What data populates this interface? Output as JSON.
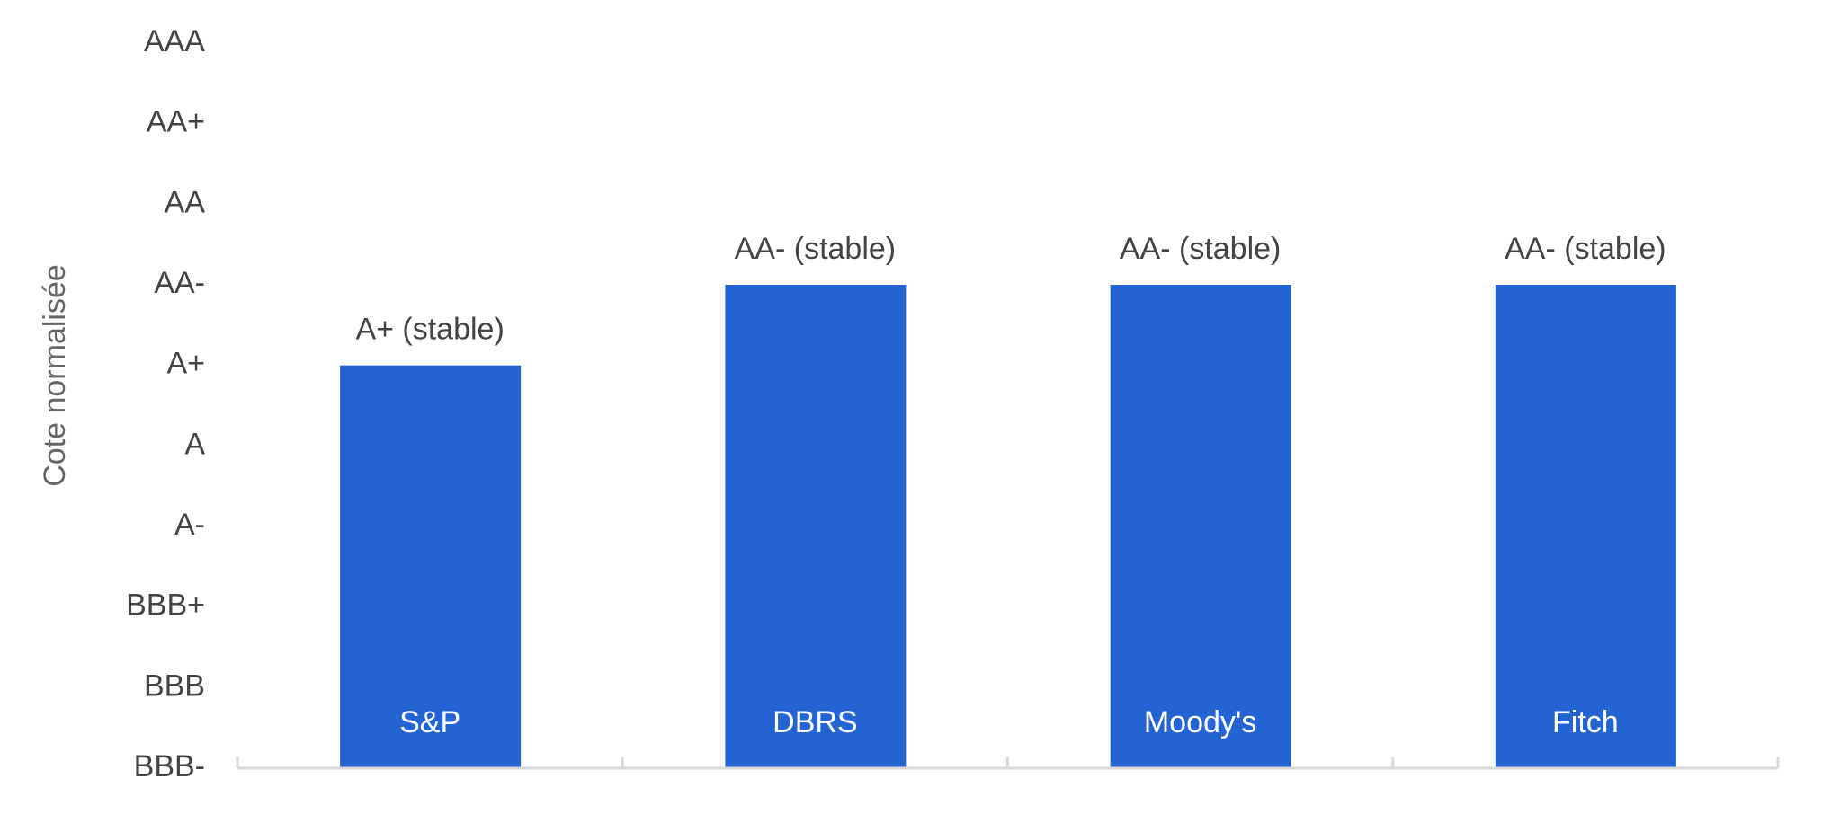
{
  "chart_data": {
    "type": "bar",
    "y_label": "Cote normalisée",
    "categories": [
      "S&P",
      "DBRS",
      "Moody's",
      "Fitch"
    ],
    "values": [
      6,
      7,
      7,
      7
    ],
    "value_labels": [
      "A+ (stable)",
      "AA- (stable)",
      "AA- (stable)",
      "AA- (stable)"
    ],
    "color": "#2364d2",
    "ylim": [
      1,
      10
    ],
    "yticks": [
      {
        "value": 1,
        "label": "BBB-"
      },
      {
        "value": 2,
        "label": "BBB"
      },
      {
        "value": 3,
        "label": "BBB+"
      },
      {
        "value": 4,
        "label": "A-"
      },
      {
        "value": 5,
        "label": "A"
      },
      {
        "value": 6,
        "label": "A+"
      },
      {
        "value": 7,
        "label": "AA-"
      },
      {
        "value": 8,
        "label": "AA"
      },
      {
        "value": 9,
        "label": "AA+"
      },
      {
        "value": 10,
        "label": "AAA"
      }
    ],
    "grid": false
  }
}
